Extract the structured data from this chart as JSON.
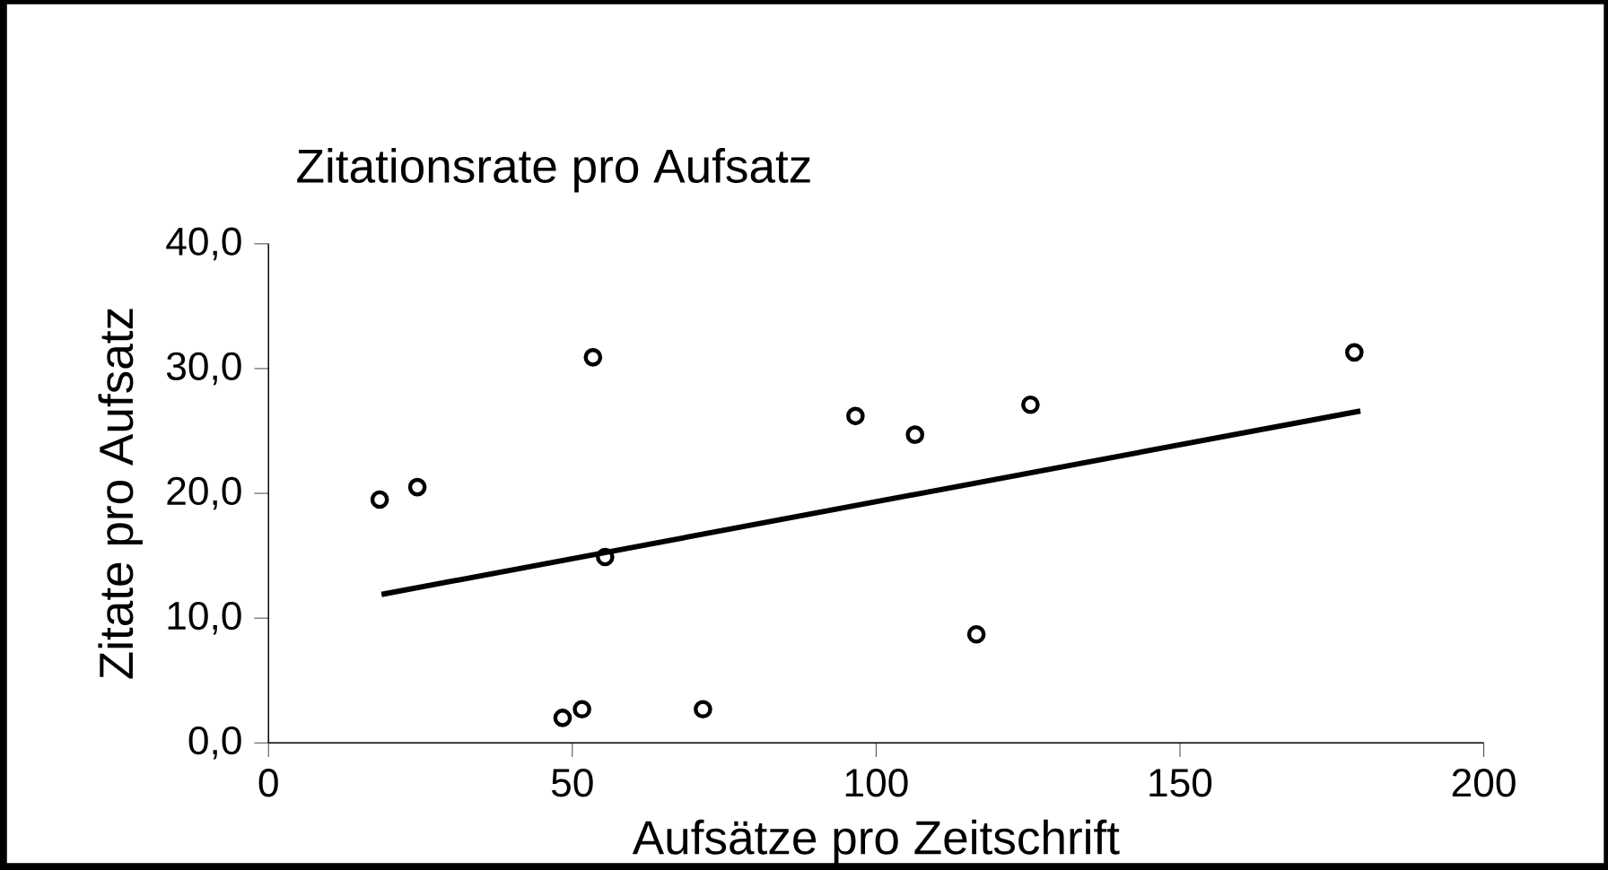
{
  "chart_data": {
    "type": "scatter",
    "title": "Zitationsrate pro Aufsatz",
    "xlabel": "Aufsätze pro Zeitschrift",
    "ylabel": "Zitate pro Aufsatz",
    "xlim": [
      0,
      200
    ],
    "xticks": [
      0,
      50,
      100,
      150,
      200
    ],
    "ylim": [
      0,
      40
    ],
    "yticks": [
      {
        "value": 0,
        "label": "0,0"
      },
      {
        "value": 10,
        "label": "10,0"
      },
      {
        "value": 20,
        "label": "20,0"
      },
      {
        "value": 30,
        "label": "30,0"
      },
      {
        "value": 40,
        "label": "40,0"
      }
    ],
    "grid": false,
    "marker": "circle",
    "series": [
      {
        "color": "#000000",
        "x": [
          18.3,
          24.5,
          53.4,
          55.4,
          48.4,
          51.6,
          71.5,
          96.6,
          106.4,
          116.5,
          125.4,
          178.7
        ],
        "values": [
          19.5,
          20.5,
          30.9,
          14.9,
          2.0,
          2.7,
          2.7,
          26.2,
          24.7,
          8.7,
          27.1,
          31.3
        ]
      },
      {
        "type": "line",
        "color": "#000000",
        "marker": "none",
        "x": [
          18.6,
          179.7
        ],
        "values": [
          11.9,
          26.6
        ]
      }
    ]
  }
}
